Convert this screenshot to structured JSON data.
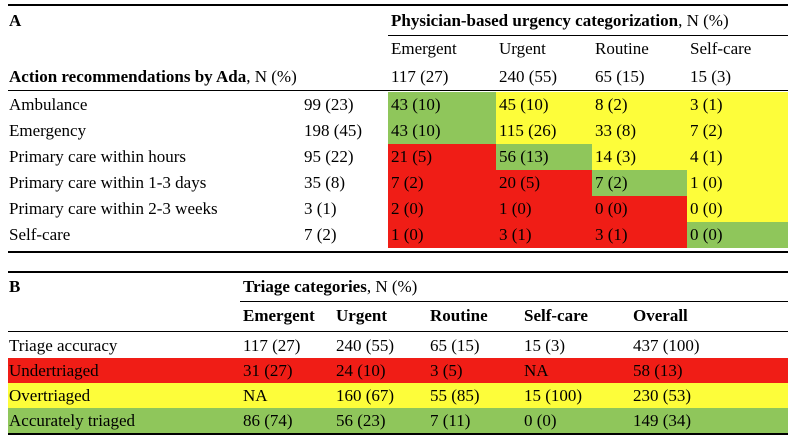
{
  "colors": {
    "green": "#8fc65b",
    "yellow": "#fdfd3a",
    "red": "#f01d16",
    "white": "#ffffff"
  },
  "table_a": {
    "label": "A",
    "header_bold": "Physician-based urgency categorization",
    "header_rest": ", N (%)",
    "columns": [
      "Emergent",
      "Urgent",
      "Routine",
      "Self-care"
    ],
    "totals_label_bold": "Action recommendations by Ada",
    "totals_label_rest": ", N (%)",
    "totals": [
      "117 (27)",
      "240 (55)",
      "65 (15)",
      "15 (3)"
    ],
    "rows": [
      {
        "label": "Ambulance",
        "n": "99 (23)",
        "cells": [
          "43 (10)",
          "45 (10)",
          "8 (2)",
          "3 (1)"
        ],
        "colors": [
          "green",
          "yellow",
          "yellow",
          "yellow"
        ]
      },
      {
        "label": "Emergency",
        "n": "198 (45)",
        "cells": [
          "43 (10)",
          "115 (26)",
          "33 (8)",
          "7 (2)"
        ],
        "colors": [
          "green",
          "yellow",
          "yellow",
          "yellow"
        ]
      },
      {
        "label": "Primary care within hours",
        "n": "95 (22)",
        "cells": [
          "21 (5)",
          "56 (13)",
          "14 (3)",
          "4 (1)"
        ],
        "colors": [
          "red",
          "green",
          "yellow",
          "yellow"
        ]
      },
      {
        "label": "Primary care within 1-3 days",
        "n": "35 (8)",
        "cells": [
          "7 (2)",
          "20 (5)",
          "7 (2)",
          "1 (0)"
        ],
        "colors": [
          "red",
          "red",
          "green",
          "yellow"
        ]
      },
      {
        "label": "Primary care within 2-3 weeks",
        "n": "3 (1)",
        "cells": [
          "2 (0)",
          "1 (0)",
          "0 (0)",
          "0 (0)"
        ],
        "colors": [
          "red",
          "red",
          "red",
          "yellow"
        ]
      },
      {
        "label": "Self-care",
        "n": "7 (2)",
        "cells": [
          "1 (0)",
          "3 (1)",
          "3 (1)",
          "0 (0)"
        ],
        "colors": [
          "red",
          "red",
          "red",
          "green"
        ]
      }
    ]
  },
  "table_b": {
    "label": "B",
    "header_bold": "Triage categories",
    "header_rest": ", N (%)",
    "columns": [
      "Emergent",
      "Urgent",
      "Routine",
      "Self-care",
      "Overall"
    ],
    "rows": [
      {
        "label": "Triage accuracy",
        "cells": [
          "117 (27)",
          "240 (55)",
          "65 (15)",
          "15 (3)",
          "437 (100)"
        ],
        "color": "white"
      },
      {
        "label": "Undertriaged",
        "cells": [
          "31 (27)",
          "24 (10)",
          "3 (5)",
          "NA",
          "58 (13)"
        ],
        "color": "red"
      },
      {
        "label": "Overtriaged",
        "cells": [
          "NA",
          "160 (67)",
          "55 (85)",
          "15 (100)",
          "230 (53)"
        ],
        "color": "yellow"
      },
      {
        "label": "Accurately triaged",
        "cells": [
          "86 (74)",
          "56 (23)",
          "7 (11)",
          "0 (0)",
          "149 (34)"
        ],
        "color": "green"
      }
    ]
  }
}
